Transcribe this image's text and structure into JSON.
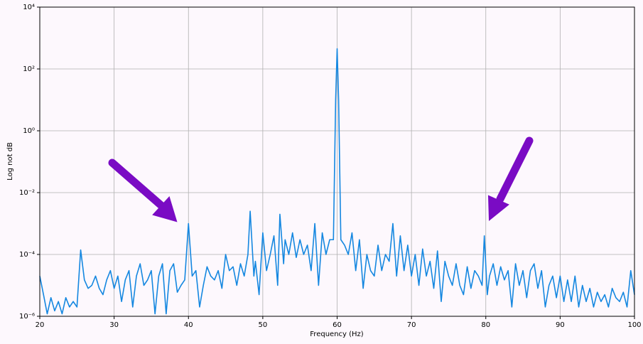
{
  "chart_data": {
    "type": "line",
    "x_label": "Frequency (Hz)",
    "y_label": "Log not dB",
    "yscale": "log",
    "grid": true,
    "color": "#1487e0",
    "xlim": [
      20,
      100
    ],
    "ylim": [
      1e-06,
      10000
    ],
    "xticks": [
      20,
      30,
      40,
      50,
      60,
      70,
      80,
      90,
      100
    ],
    "yticks": [
      {
        "value": 1e-06,
        "label": "10⁻⁶"
      },
      {
        "value": 0.0001,
        "label": "10⁻⁴"
      },
      {
        "value": 0.01,
        "label": "10⁻²"
      },
      {
        "value": 1,
        "label": "10⁰"
      },
      {
        "value": 100,
        "label": "10²"
      },
      {
        "value": 10000,
        "label": "10⁴"
      }
    ],
    "x": [
      20,
      20.5,
      21,
      21.5,
      22,
      22.5,
      23,
      23.5,
      24,
      24.5,
      25,
      25.5,
      26,
      26.5,
      27,
      27.5,
      28,
      28.5,
      29,
      29.5,
      30,
      30.5,
      31,
      31.5,
      32,
      32.5,
      33,
      33.5,
      34,
      34.5,
      35,
      35.5,
      36,
      36.5,
      37,
      37.5,
      38,
      38.5,
      39,
      39.5,
      40,
      40.5,
      41,
      41.5,
      42,
      42.5,
      43,
      43.5,
      44,
      44.5,
      45,
      45.5,
      46,
      46.5,
      47,
      47.5,
      48,
      48.3,
      48.8,
      49,
      49.5,
      50,
      50.5,
      51,
      51.5,
      52,
      52.3,
      52.8,
      53,
      53.5,
      54,
      54.5,
      55,
      55.5,
      56,
      56.5,
      57,
      57.5,
      58,
      58.5,
      59,
      59.5,
      59.8,
      60,
      60.2,
      60.5,
      61,
      61.5,
      62,
      62.5,
      63,
      63.5,
      64,
      64.5,
      65,
      65.5,
      66,
      66.5,
      67,
      67.5,
      68,
      68.5,
      69,
      69.5,
      70,
      70.5,
      71,
      71.5,
      72,
      72.5,
      73,
      73.5,
      74,
      74.5,
      75,
      75.5,
      76,
      76.5,
      77,
      77.5,
      78,
      78.5,
      79,
      79.5,
      79.8,
      80.2,
      80.5,
      81,
      81.5,
      82,
      82.5,
      83,
      83.5,
      84,
      84.5,
      85,
      85.5,
      86,
      86.5,
      87,
      87.5,
      88,
      88.5,
      89,
      89.5,
      90,
      90.5,
      91,
      91.5,
      92,
      92.5,
      93,
      93.5,
      94,
      94.5,
      95,
      95.5,
      96,
      96.5,
      97,
      97.5,
      98,
      98.5,
      99,
      99.5,
      100
    ],
    "values": [
      2e-05,
      5e-06,
      1.2e-06,
      4e-06,
      1.5e-06,
      3e-06,
      1.2e-06,
      4e-06,
      2e-06,
      3e-06,
      2e-06,
      0.00014,
      1.5e-05,
      8e-06,
      1e-05,
      2e-05,
      8e-06,
      5e-06,
      1.5e-05,
      3e-05,
      8e-06,
      2e-05,
      3e-06,
      1.5e-05,
      3e-05,
      2e-06,
      2e-05,
      5e-05,
      1e-05,
      1.5e-05,
      3e-05,
      1.2e-06,
      2e-05,
      5e-05,
      1.2e-06,
      3e-05,
      5e-05,
      6e-06,
      1e-05,
      1.5e-05,
      0.001,
      2e-05,
      3e-05,
      2e-06,
      1e-05,
      4e-05,
      2e-05,
      1.5e-05,
      3e-05,
      8e-06,
      0.0001,
      3e-05,
      4e-05,
      1e-05,
      5e-05,
      2e-05,
      0.0001,
      0.0025,
      2e-05,
      6e-05,
      5e-06,
      0.0005,
      3e-05,
      0.0001,
      0.0004,
      1e-05,
      0.002,
      5e-05,
      0.0003,
      0.0001,
      0.0005,
      8e-05,
      0.0003,
      0.0001,
      0.0002,
      3e-05,
      0.001,
      1e-05,
      0.0005,
      0.0001,
      0.0003,
      0.0003,
      10,
      450,
      10,
      0.0003,
      0.0002,
      0.0001,
      0.0005,
      3e-05,
      0.0003,
      8e-06,
      0.0001,
      3e-05,
      2e-05,
      0.0002,
      3e-05,
      0.0001,
      6e-05,
      0.001,
      2e-05,
      0.0004,
      3e-05,
      0.0002,
      2e-05,
      0.0001,
      1e-05,
      0.00015,
      2e-05,
      6e-05,
      8e-06,
      0.00013,
      3e-06,
      6e-05,
      2e-05,
      1e-05,
      5e-05,
      1e-05,
      5e-06,
      4e-05,
      8e-06,
      3e-05,
      2e-05,
      1e-05,
      0.0004,
      5e-06,
      2e-05,
      5e-05,
      1e-05,
      4e-05,
      1.5e-05,
      3e-05,
      2e-06,
      5e-05,
      1e-05,
      3e-05,
      4e-06,
      3e-05,
      5e-05,
      8e-06,
      3e-05,
      2e-06,
      1e-05,
      2e-05,
      4e-06,
      2e-05,
      3e-06,
      1.5e-05,
      3e-06,
      2e-05,
      2e-06,
      1e-05,
      3e-06,
      8e-06,
      2e-06,
      6e-06,
      3e-06,
      5e-06,
      2e-06,
      8e-06,
      4e-06,
      3e-06,
      6e-06,
      2e-06,
      3e-05,
      5e-06
    ]
  }
}
